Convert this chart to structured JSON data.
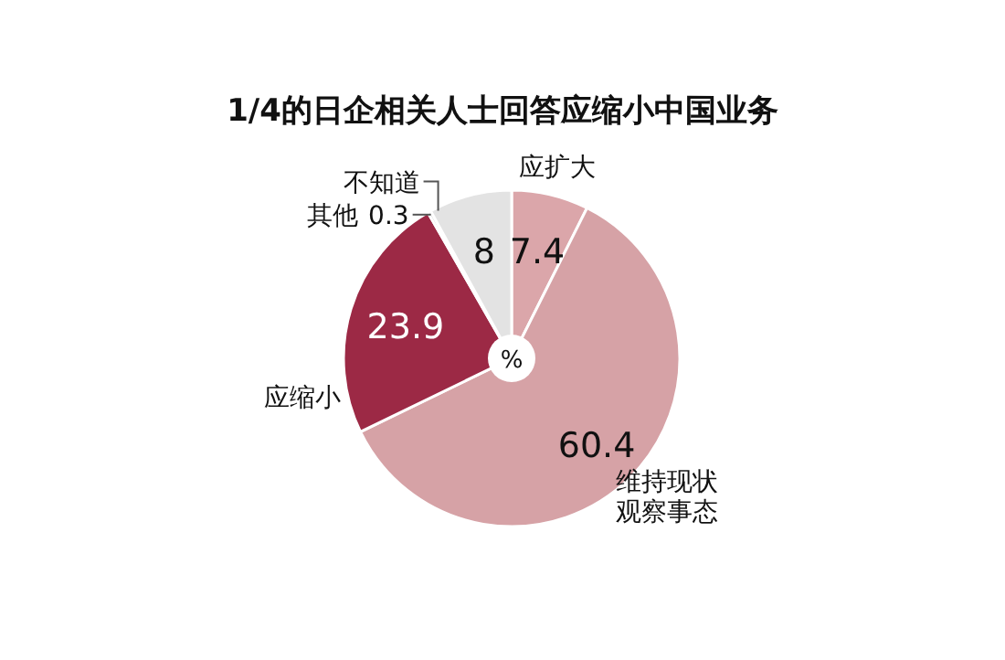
{
  "chart_data": {
    "type": "pie",
    "title": "1/4的日企相关人士回答应缩小中国业务",
    "categories": [
      "应扩大",
      "维持现状观察事态",
      "应缩小",
      "其他",
      "不知道"
    ],
    "values": [
      7.4,
      60.4,
      23.9,
      0.3,
      8
    ],
    "colors": [
      "#dba6aa",
      "#d6a2a6",
      "#9c2945",
      "#b8b8b8",
      "#e3e3e3"
    ],
    "data_labels": true,
    "annotations": [
      "%"
    ]
  }
}
